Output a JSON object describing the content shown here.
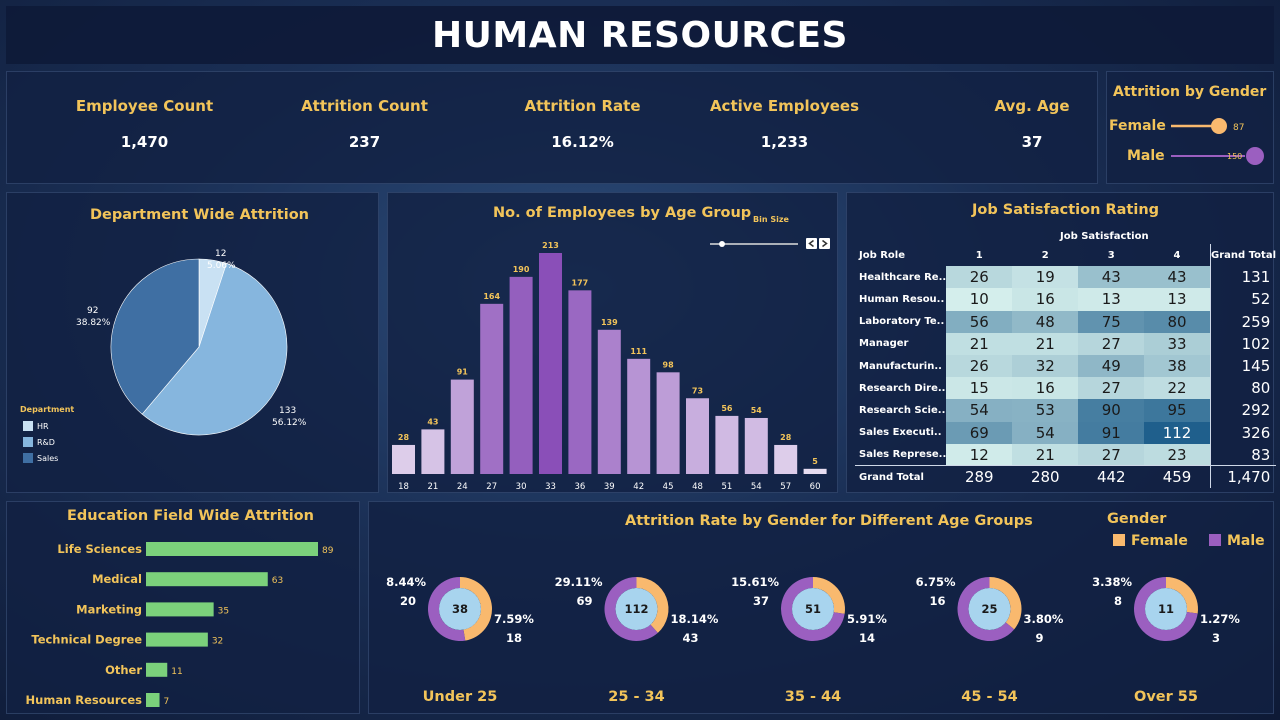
{
  "header": {
    "title": "HUMAN RESOURCES"
  },
  "kpis": [
    {
      "label": "Employee Count",
      "value": "1,470"
    },
    {
      "label": "Attrition Count",
      "value": "237"
    },
    {
      "label": "Attrition Rate",
      "value": "16.12%"
    },
    {
      "label": "Active Employees",
      "value": "1,233"
    },
    {
      "label": "Avg. Age",
      "value": "37"
    }
  ],
  "gender_attrition": {
    "title": "Attrition by Gender",
    "items": [
      {
        "label": "Female",
        "value": "87"
      },
      {
        "label": "Male",
        "value": "150"
      }
    ]
  },
  "age_panel": {
    "bin_size_label": "Bin Size"
  },
  "job_satisfaction": {
    "title": "Job Satisfaction Rating",
    "column_group": "Job Satisfaction",
    "row_header": "Job Role",
    "columns": [
      "1",
      "2",
      "3",
      "4"
    ],
    "grand_total_label": "Grand Total",
    "rows": [
      {
        "role": "Healthcare Re..",
        "values": [
          "26",
          "19",
          "43",
          "43"
        ],
        "total": "131"
      },
      {
        "role": "Human Resou..",
        "values": [
          "10",
          "16",
          "13",
          "13"
        ],
        "total": "52"
      },
      {
        "role": "Laboratory Te..",
        "values": [
          "56",
          "48",
          "75",
          "80"
        ],
        "total": "259"
      },
      {
        "role": "Manager",
        "values": [
          "21",
          "21",
          "27",
          "33"
        ],
        "total": "102"
      },
      {
        "role": "Manufacturin..",
        "values": [
          "26",
          "32",
          "49",
          "38"
        ],
        "total": "145"
      },
      {
        "role": "Research Dire..",
        "values": [
          "15",
          "16",
          "27",
          "22"
        ],
        "total": "80"
      },
      {
        "role": "Research Scie..",
        "values": [
          "54",
          "53",
          "90",
          "95"
        ],
        "total": "292"
      },
      {
        "role": "Sales Executi..",
        "values": [
          "69",
          "54",
          "91",
          "112"
        ],
        "total": "326"
      },
      {
        "role": "Sales Represe..",
        "values": [
          "12",
          "21",
          "27",
          "23"
        ],
        "total": "83"
      }
    ],
    "totals": {
      "label": "Grand Total",
      "values": [
        "289",
        "280",
        "442",
        "459"
      ],
      "total": "1,470"
    }
  },
  "gender_legend": {
    "title": "Gender",
    "female": "Female",
    "male": "Male"
  },
  "colors": {
    "gold": "#f2c45a",
    "female": "#f9b96e",
    "male": "#9b5fc0",
    "bar_green": "#7bd17b",
    "pie_hr": "#c9e1f3",
    "pie_rd": "#86b6de",
    "pie_sales": "#3f6fa3"
  },
  "chart_data": [
    {
      "id": "department",
      "type": "pie",
      "title": "Department Wide Attrition",
      "legend_title": "Department",
      "slices": [
        {
          "name": "HR",
          "value": 12,
          "label": "12",
          "pct": "5.06%"
        },
        {
          "name": "R&D",
          "value": 133,
          "label": "133",
          "pct": "56.12%"
        },
        {
          "name": "Sales",
          "value": 92,
          "label": "92",
          "pct": "38.82%"
        }
      ]
    },
    {
      "id": "age",
      "type": "bar",
      "title": "No. of Employees by Age Group",
      "categories": [
        "18",
        "21",
        "24",
        "27",
        "30",
        "33",
        "36",
        "39",
        "42",
        "45",
        "48",
        "51",
        "54",
        "57",
        "60"
      ],
      "values": [
        28,
        43,
        91,
        164,
        190,
        213,
        177,
        139,
        111,
        98,
        73,
        56,
        54,
        28,
        5
      ],
      "ylim": [
        0,
        213
      ]
    },
    {
      "id": "education",
      "type": "bar",
      "orientation": "horizontal",
      "title": "Education Field Wide Attrition",
      "categories": [
        "Life Sciences",
        "Medical",
        "Marketing",
        "Technical Degree",
        "Other",
        "Human Resources"
      ],
      "values": [
        89,
        63,
        35,
        32,
        11,
        7
      ]
    },
    {
      "id": "gender_age",
      "type": "pie",
      "subtype": "donut",
      "title": "Attrition Rate by Gender for Different Age Groups",
      "groups": [
        {
          "label": "Under 25",
          "total": "38",
          "male_pct": "8.44%",
          "male_count": "20",
          "female_pct": "7.59%",
          "female_count": "18",
          "male": 20,
          "female": 18
        },
        {
          "label": "25 - 34",
          "total": "112",
          "male_pct": "29.11%",
          "male_count": "69",
          "female_pct": "18.14%",
          "female_count": "43",
          "male": 69,
          "female": 43
        },
        {
          "label": "35 - 44",
          "total": "51",
          "male_pct": "15.61%",
          "male_count": "37",
          "female_pct": "5.91%",
          "female_count": "14",
          "male": 37,
          "female": 14
        },
        {
          "label": "45 - 54",
          "total": "25",
          "male_pct": "6.75%",
          "male_count": "16",
          "female_pct": "3.80%",
          "female_count": "9",
          "male": 16,
          "female": 9
        },
        {
          "label": "Over 55",
          "total": "11",
          "male_pct": "3.38%",
          "male_count": "8",
          "female_pct": "1.27%",
          "female_count": "3",
          "male": 8,
          "female": 3
        }
      ]
    }
  ]
}
